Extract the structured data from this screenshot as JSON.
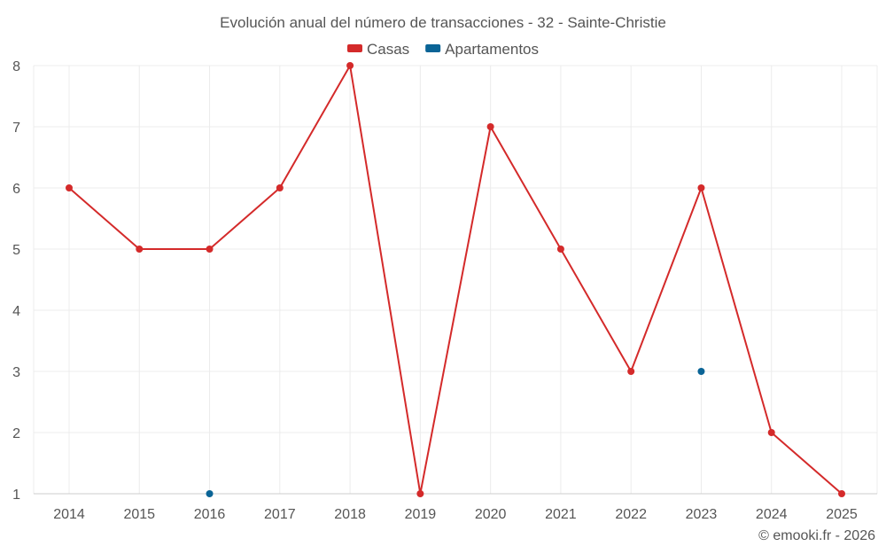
{
  "chart_data": {
    "type": "line",
    "title": "Evolución anual del número de transacciones - 32 - Sainte-Christie",
    "categories": [
      "2014",
      "2015",
      "2016",
      "2017",
      "2018",
      "2019",
      "2020",
      "2021",
      "2022",
      "2023",
      "2024",
      "2025"
    ],
    "series": [
      {
        "name": "Casas",
        "color": "#d42a2a",
        "values": [
          6,
          5,
          5,
          6,
          8,
          1,
          7,
          5,
          3,
          6,
          2,
          1
        ]
      },
      {
        "name": "Apartamentos",
        "color": "#0a6496",
        "values": [
          null,
          null,
          1,
          null,
          null,
          null,
          null,
          null,
          null,
          3,
          null,
          null
        ]
      }
    ],
    "ylim": [
      1,
      8
    ],
    "yticks": [
      "1",
      "2",
      "3",
      "4",
      "5",
      "6",
      "7",
      "8"
    ],
    "legend_position": "top-center",
    "grid": true,
    "xlabel": "",
    "ylabel": ""
  },
  "footer": {
    "credit": "© emooki.fr - 2026"
  }
}
